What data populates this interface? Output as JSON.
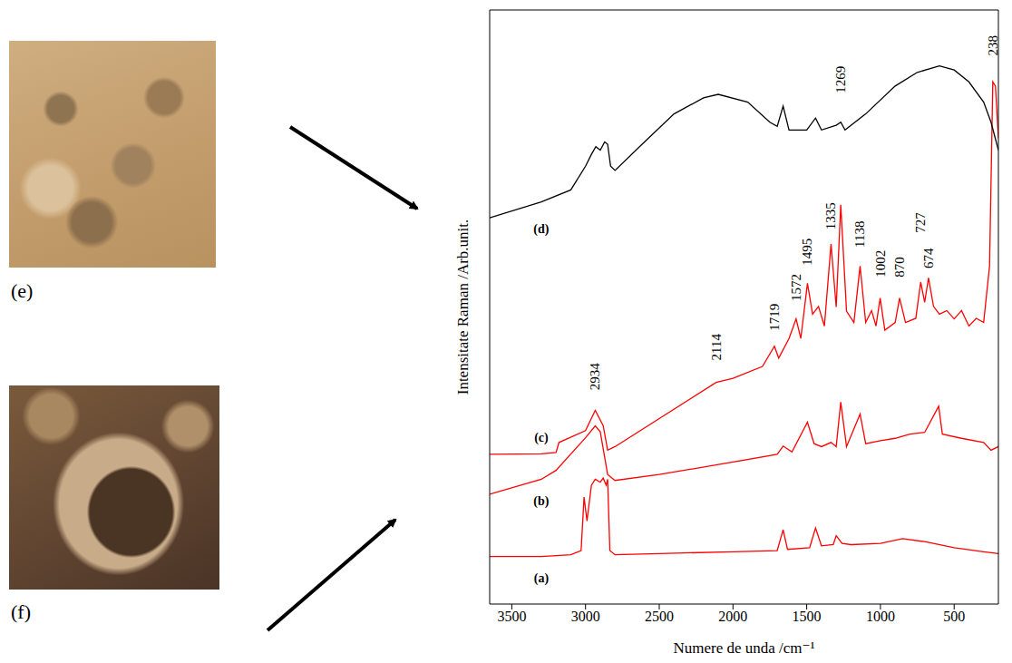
{
  "chart_data": {
    "type": "line",
    "xlabel": "Numere de unda /cm⁻¹",
    "ylabel": "Intensitate Raman /Arb.unit.",
    "xlim": [
      3650,
      200
    ],
    "xticks": [
      3500,
      3000,
      2500,
      2000,
      1500,
      1000,
      500
    ],
    "ylim": [
      0,
      100
    ],
    "tick_labels": "x",
    "series": [
      {
        "name": "(a)",
        "color": "#ff0000",
        "x": [
          3650,
          3300,
          3100,
          3030,
          3010,
          2990,
          2960,
          2934,
          2900,
          2880,
          2860,
          2850,
          2835,
          2800,
          2500,
          2000,
          1700,
          1660,
          1630,
          1480,
          1440,
          1400,
          1320,
          1300,
          1260,
          1200,
          1000,
          850,
          700,
          500,
          300,
          200
        ],
        "values": [
          8,
          8,
          8.3,
          9,
          18,
          14,
          20,
          21,
          20.5,
          21.2,
          20,
          21,
          9,
          8.3,
          8.5,
          8.8,
          9,
          12.5,
          9.2,
          9.5,
          12.8,
          9.8,
          10,
          11.5,
          10.2,
          10,
          10.2,
          11,
          10.5,
          9.5,
          8.8,
          8.5
        ]
      },
      {
        "name": "(b)",
        "color": "#ff0000",
        "x": [
          3650,
          3300,
          3200,
          3000,
          2934,
          2900,
          2850,
          2800,
          2500,
          2000,
          1700,
          1660,
          1600,
          1495,
          1450,
          1400,
          1335,
          1300,
          1269,
          1230,
          1138,
          1100,
          1000,
          900,
          800,
          700,
          605,
          580,
          450,
          300,
          250,
          200
        ],
        "values": [
          18.5,
          21,
          22.5,
          28,
          30,
          29,
          21.8,
          20.8,
          21.8,
          23.9,
          25.2,
          26.6,
          25.6,
          30.6,
          27,
          26.5,
          27.2,
          26.5,
          34,
          26.5,
          32,
          27,
          27.5,
          27.9,
          28.6,
          28.9,
          33.3,
          28.6,
          27.9,
          27.2,
          25.9,
          26.5
        ]
      },
      {
        "name": "(c)",
        "color": "#ff0000",
        "x": [
          3650,
          3300,
          3200,
          3180,
          3000,
          2934,
          2880,
          2850,
          2800,
          2114,
          2000,
          1800,
          1719,
          1690,
          1620,
          1572,
          1540,
          1495,
          1460,
          1420,
          1380,
          1335,
          1300,
          1269,
          1230,
          1180,
          1138,
          1100,
          1060,
          1030,
          1002,
          970,
          900,
          870,
          830,
          760,
          727,
          700,
          674,
          640,
          600,
          550,
          500,
          450,
          400,
          350,
          300,
          260,
          238,
          220,
          200
        ],
        "values": [
          25.2,
          25.3,
          25.5,
          27.2,
          29.2,
          32.6,
          30,
          25.9,
          26.5,
          37.3,
          38,
          40,
          43.4,
          41.4,
          44.7,
          48,
          44.7,
          54,
          48.8,
          50.1,
          46.8,
          60.6,
          50,
          67.2,
          49.3,
          47.4,
          56.9,
          47.4,
          49.4,
          46.8,
          51.5,
          46.1,
          47.4,
          51.5,
          47.4,
          48.1,
          54.2,
          50.8,
          54.9,
          50.1,
          48.8,
          49.4,
          48,
          49.4,
          46.8,
          48.1,
          47.4,
          56.9,
          87.9,
          87.2,
          78.4
        ]
      },
      {
        "name": "(d)",
        "color": "#000000",
        "x": [
          3650,
          3300,
          3100,
          3000,
          2960,
          2930,
          2900,
          2870,
          2850,
          2830,
          2800,
          2600,
          2400,
          2200,
          2100,
          1900,
          1750,
          1700,
          1660,
          1620,
          1500,
          1440,
          1400,
          1300,
          1269,
          1240,
          1100,
          900,
          750,
          600,
          500,
          400,
          300,
          250,
          200
        ],
        "values": [
          65,
          67.7,
          69.7,
          73.7,
          75.7,
          77,
          76.4,
          77.8,
          77.4,
          73.7,
          73,
          77.8,
          82.5,
          85.2,
          85.8,
          84.5,
          81.1,
          80.4,
          83.8,
          79.8,
          79.8,
          81.8,
          79.8,
          80.6,
          81.1,
          79.8,
          82.5,
          87.2,
          89.5,
          90.6,
          89.9,
          87.9,
          84.5,
          81.1,
          76.4
        ]
      }
    ],
    "annotations": [
      {
        "text": "238",
        "x": 238,
        "y": 92.3
      },
      {
        "text": "1269",
        "x": 1269,
        "y": 86
      },
      {
        "text": "1335",
        "x": 1335,
        "y": 63
      },
      {
        "text": "1495",
        "x": 1495,
        "y": 57
      },
      {
        "text": "1572",
        "x": 1572,
        "y": 51
      },
      {
        "text": "1719",
        "x": 1719,
        "y": 46
      },
      {
        "text": "1138",
        "x": 1138,
        "y": 60
      },
      {
        "text": "1002",
        "x": 1002,
        "y": 55
      },
      {
        "text": "870",
        "x": 870,
        "y": 55
      },
      {
        "text": "727",
        "x": 727,
        "y": 62.5
      },
      {
        "text": "674",
        "x": 674,
        "y": 56.5
      },
      {
        "text": "2114",
        "x": 2114,
        "y": 41
      },
      {
        "text": "2934",
        "x": 2934,
        "y": 36
      }
    ]
  },
  "images": [
    {
      "label": "(e)"
    },
    {
      "label": "(f)"
    }
  ]
}
